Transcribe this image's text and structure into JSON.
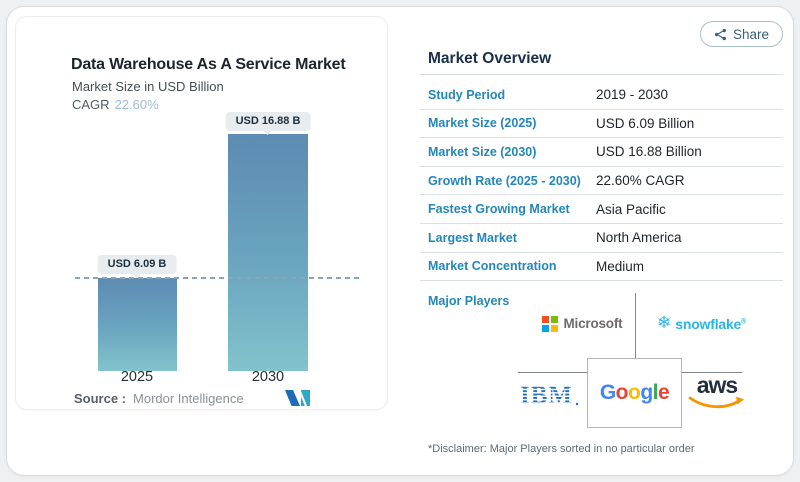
{
  "share": {
    "label": "Share"
  },
  "chart": {
    "title": "Data Warehouse As A Service Market",
    "subtitle": "Market Size in USD Billion",
    "cagr_label": "CAGR",
    "cagr_value": "22.60%",
    "source_label": "Source :",
    "source_value": "Mordor Intelligence",
    "bars": [
      {
        "year": "2025",
        "label": "USD 6.09 B",
        "value": 6.09
      },
      {
        "year": "2030",
        "label": "USD 16.88 B",
        "value": 16.88
      }
    ]
  },
  "chart_data": {
    "type": "bar",
    "title": "Data Warehouse As A Service Market",
    "subtitle": "Market Size in USD Billion",
    "categories": [
      "2025",
      "2030"
    ],
    "values": [
      6.09,
      16.88
    ],
    "unit": "USD Billion",
    "data_labels": [
      "USD 6.09 B",
      "USD 16.88 B"
    ],
    "cagr": "22.60%",
    "annotations": [
      "dashed reference line at 2025 value"
    ],
    "xlabel": "",
    "ylabel": "",
    "ylim": [
      0,
      18
    ],
    "grid": false,
    "legend": false,
    "source": "Mordor Intelligence"
  },
  "overview": {
    "heading": "Market Overview",
    "rows": [
      {
        "label": "Study Period",
        "value": "2019 - 2030"
      },
      {
        "label": "Market Size (2025)",
        "value": "USD 6.09 Billion"
      },
      {
        "label": "Market Size (2030)",
        "value": "USD 16.88 Billion"
      },
      {
        "label": "Growth Rate (2025 - 2030)",
        "value": "22.60% CAGR"
      },
      {
        "label": "Fastest Growing Market",
        "value": "Asia Pacific"
      },
      {
        "label": "Largest Market",
        "value": "North America"
      },
      {
        "label": "Market Concentration",
        "value": "Medium"
      }
    ],
    "major_players_label": "Major Players",
    "disclaimer": "*Disclaimer: Major Players sorted in no particular order"
  },
  "logos": {
    "microsoft": {
      "text": "Microsoft",
      "square_colors": [
        "#f25022",
        "#7fba00",
        "#00a4ef",
        "#ffb900"
      ]
    },
    "snowflake": {
      "text": "snowflake",
      "icon_char": "❄",
      "color": "#29b5e8"
    },
    "ibm": {
      "text": "IBM",
      "color": "#1f70c1"
    },
    "google": {
      "letters": [
        {
          "ch": "G",
          "color": "#4285f4"
        },
        {
          "ch": "o",
          "color": "#ea4335"
        },
        {
          "ch": "o",
          "color": "#fbbc05"
        },
        {
          "ch": "g",
          "color": "#4285f4"
        },
        {
          "ch": "l",
          "color": "#34a853"
        },
        {
          "ch": "e",
          "color": "#ea4335"
        }
      ]
    },
    "aws": {
      "text": "aws",
      "smile_color": "#f79400"
    }
  },
  "colors": {
    "accent_blue": "#2487b9",
    "heading_navy": "#1a2f49",
    "bar_top": "#5d8bb2",
    "bar_bottom": "#82c3cb",
    "cagr_value": "#9dbcd8",
    "badge_bg": "#e9ecee"
  }
}
